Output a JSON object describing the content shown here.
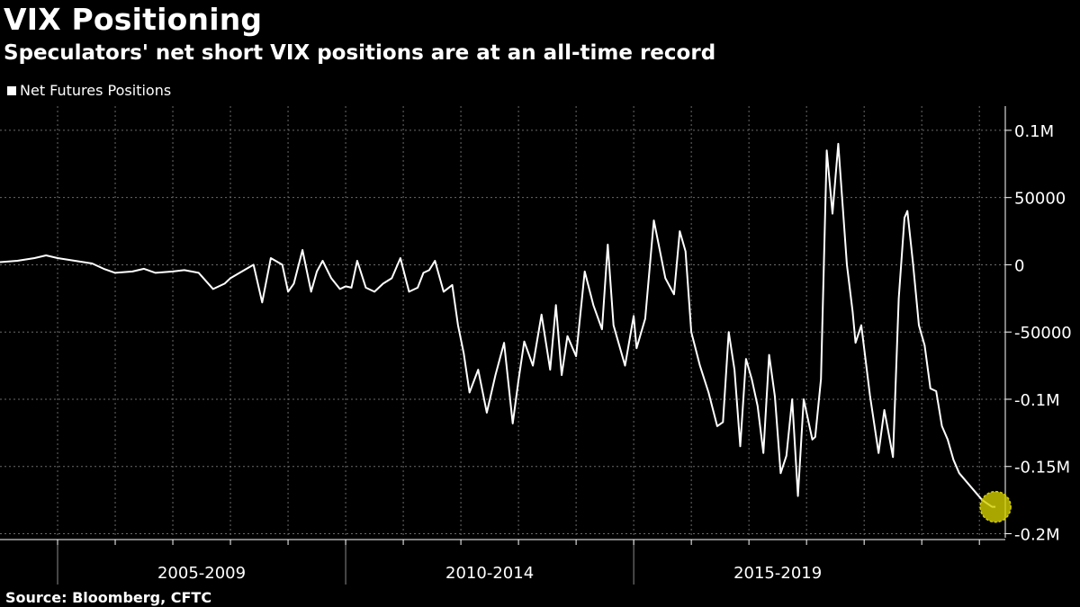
{
  "chart_data": {
    "type": "line",
    "title": "VIX Positioning",
    "subtitle": "Speculators' net short VIX positions are at an all-time record",
    "source": "Source: Bloomberg, CFTC",
    "legend": [
      "Net Futures Positions"
    ],
    "legend_position": "top-left",
    "x_range": [
      2004.0,
      2021.45
    ],
    "ylim": [
      -203000,
      118000
    ],
    "y_ticks": [
      {
        "value": 100000,
        "label": "0.1M"
      },
      {
        "value": 50000,
        "label": "50000"
      },
      {
        "value": 0,
        "label": "0"
      },
      {
        "value": -50000,
        "label": "-50000"
      },
      {
        "value": -100000,
        "label": "-0.1M"
      },
      {
        "value": -150000,
        "label": "-0.15M"
      },
      {
        "value": -200000,
        "label": "-0.2M"
      }
    ],
    "x_tick_labels": [
      "2005-2009",
      "2010-2014",
      "2015-2019"
    ],
    "grid": true,
    "series": [
      {
        "name": "Net Futures Positions",
        "color": "#ffffff",
        "x": [
          2004.0,
          2004.3,
          2004.6,
          2004.8,
          2005.0,
          2005.3,
          2005.6,
          2005.8,
          2006.0,
          2006.3,
          2006.5,
          2006.7,
          2007.0,
          2007.2,
          2007.45,
          2007.7,
          2007.9,
          2008.0,
          2008.2,
          2008.4,
          2008.55,
          2008.7,
          2008.9,
          2009.0,
          2009.1,
          2009.25,
          2009.4,
          2009.5,
          2009.6,
          2009.75,
          2009.9,
          2010.0,
          2010.1,
          2010.2,
          2010.35,
          2010.5,
          2010.65,
          2010.8,
          2010.95,
          2011.1,
          2011.25,
          2011.35,
          2011.45,
          2011.55,
          2011.7,
          2011.85,
          2011.95,
          2012.05,
          2012.15,
          2012.3,
          2012.45,
          2012.6,
          2012.75,
          2012.9,
          2013.0,
          2013.1,
          2013.25,
          2013.4,
          2013.55,
          2013.65,
          2013.75,
          2013.85,
          2014.0,
          2014.15,
          2014.3,
          2014.45,
          2014.55,
          2014.65,
          2014.75,
          2014.85,
          2015.0,
          2015.05,
          2015.2,
          2015.35,
          2015.55,
          2015.7,
          2015.8,
          2015.9,
          2016.0,
          2016.15,
          2016.3,
          2016.45,
          2016.55,
          2016.65,
          2016.75,
          2016.85,
          2016.95,
          2017.05,
          2017.15,
          2017.25,
          2017.35,
          2017.45,
          2017.55,
          2017.65,
          2017.75,
          2017.85,
          2017.95,
          2018.05,
          2018.1,
          2018.15,
          2018.25,
          2018.35,
          2018.45,
          2018.55,
          2018.7,
          2018.8,
          2018.85,
          2018.95,
          2019.1,
          2019.25,
          2019.35,
          2019.5,
          2019.6,
          2019.7,
          2019.75,
          2019.85,
          2019.95,
          2020.05,
          2020.15,
          2020.25,
          2020.35,
          2020.45,
          2020.55,
          2020.65,
          2020.75,
          2020.85,
          2020.95,
          2021.05,
          2021.15,
          2021.22,
          2021.28
        ],
        "values": [
          2000,
          3000,
          5000,
          7000,
          5000,
          3000,
          1000,
          -3000,
          -6000,
          -5000,
          -3000,
          -6000,
          -5000,
          -4000,
          -6000,
          -18000,
          -14000,
          -10000,
          -5000,
          0,
          -28000,
          5000,
          0,
          -20000,
          -14000,
          11000,
          -20000,
          -5000,
          3000,
          -10000,
          -18000,
          -16000,
          -17000,
          3000,
          -17000,
          -20000,
          -14000,
          -10000,
          5000,
          -20000,
          -17000,
          -6000,
          -4000,
          3000,
          -20000,
          -15000,
          -45000,
          -66000,
          -95000,
          -78000,
          -110000,
          -82000,
          -58000,
          -118000,
          -86000,
          -57000,
          -75000,
          -37000,
          -78000,
          -30000,
          -82000,
          -53000,
          -68000,
          -5000,
          -30000,
          -48000,
          15000,
          -45000,
          -60000,
          -75000,
          -38000,
          -62000,
          -40000,
          33000,
          -10000,
          -22000,
          25000,
          10000,
          -50000,
          -75000,
          -95000,
          -120000,
          -117000,
          -50000,
          -78000,
          -135000,
          -70000,
          -85000,
          -105000,
          -140000,
          -67000,
          -98000,
          -155000,
          -142000,
          -100000,
          -172000,
          -100000,
          -120000,
          -130000,
          -128000,
          -85000,
          85000,
          38000,
          90000,
          0,
          -35000,
          -58000,
          -45000,
          -97000,
          -140000,
          -108000,
          -143000,
          -25000,
          35000,
          40000,
          0,
          -45000,
          -60000,
          -92000,
          -94000,
          -120000,
          -130000,
          -145000,
          -155000,
          -160000,
          -165000,
          -170000,
          -175000,
          -178000,
          -180000,
          -180000
        ]
      }
    ],
    "annotation": {
      "label": "",
      "x": 2021.28,
      "y": -180000,
      "color": "#d4d000"
    }
  }
}
